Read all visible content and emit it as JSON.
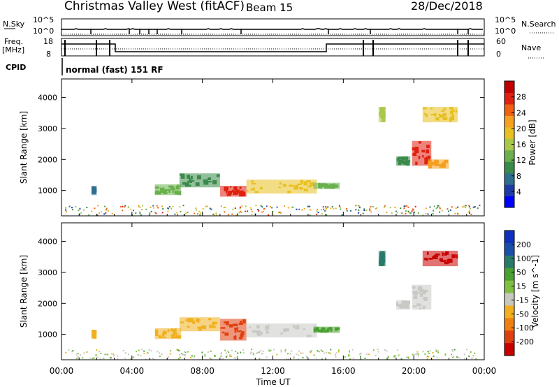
{
  "header": {
    "title": "Christmas Valley West (fitACF)",
    "beam": "Beam 15",
    "date": "28/Dec/2018"
  },
  "strip_labels": {
    "nsky": "N.Sky",
    "nsky_tick_top": "10^5",
    "nsky_tick_bottom": "10^0",
    "nsearch": "N.Search",
    "nsearch_tick_top": "10^5",
    "nsearch_tick_bottom": "10^0",
    "freq": "Freq.",
    "freq_unit": "[MHz]",
    "freq_tick_top": "18",
    "freq_tick_bottom": "8",
    "nave": "Nave",
    "nave_tick_top": "60",
    "nave_tick_bottom": "0",
    "cpid": "CPID",
    "cpid_value": "normal (fast) 151 RF"
  },
  "colors": {
    "power": [
      "#0000ff",
      "#1e3ca8",
      "#2e6f8e",
      "#3a8a4a",
      "#6ab04c",
      "#a9c84a",
      "#e8c020",
      "#f5a020",
      "#f06010",
      "#e02010",
      "#c00000"
    ],
    "velocity": [
      "#1030c0",
      "#1a4ea8",
      "#2a7a6a",
      "#4aa030",
      "#80c040",
      "#c8c8c0",
      "#f0b020",
      "#f08010",
      "#e04010",
      "#c80000"
    ],
    "velocity_gs": "#c8c8c4"
  },
  "chart_data": [
    {
      "type": "heatmap",
      "name": "Power",
      "xlabel": "",
      "ylabel": "Slant Range [km]",
      "xlim": [
        0,
        24
      ],
      "ylim": [
        180,
        4600
      ],
      "yticks": [
        1000,
        2000,
        3000,
        4000
      ],
      "colorbar": {
        "label": "Power [dB]",
        "range": [
          0,
          32
        ],
        "ticks": [
          "4",
          "8",
          "12",
          "16",
          "20",
          "24",
          "28"
        ]
      },
      "regions": [
        {
          "t": [
            1.7,
            2.0
          ],
          "r": [
            850,
            1150
          ],
          "v": 6
        },
        {
          "t": [
            5.3,
            6.8
          ],
          "r": [
            850,
            1200
          ],
          "v": 12
        },
        {
          "t": [
            6.7,
            9.0
          ],
          "r": [
            1100,
            1550
          ],
          "v": 11
        },
        {
          "t": [
            9.0,
            10.5
          ],
          "r": [
            800,
            1150
          ],
          "v": 28
        },
        {
          "t": [
            10.5,
            14.5
          ],
          "r": [
            900,
            1350
          ],
          "v": 20
        },
        {
          "t": [
            14.3,
            15.8
          ],
          "r": [
            1050,
            1250
          ],
          "v": 14
        },
        {
          "t": [
            18.0,
            18.4
          ],
          "r": [
            3200,
            3700
          ],
          "v": 17
        },
        {
          "t": [
            19.0,
            19.8
          ],
          "r": [
            1800,
            2100
          ],
          "v": 10
        },
        {
          "t": [
            19.9,
            21.0
          ],
          "r": [
            1800,
            2600
          ],
          "v": 29
        },
        {
          "t": [
            20.8,
            22.0
          ],
          "r": [
            1700,
            2000
          ],
          "v": 22
        },
        {
          "t": [
            20.5,
            22.5
          ],
          "r": [
            3200,
            3700
          ],
          "v": 18
        }
      ]
    },
    {
      "type": "heatmap",
      "name": "Velocity",
      "xlabel": "Time UT",
      "ylabel": "Slant Range [km]",
      "xlim": [
        0,
        24
      ],
      "ylim": [
        180,
        4600
      ],
      "xticks": [
        "00:00",
        "04:00",
        "08:00",
        "12:00",
        "16:00",
        "20:00",
        "00:00"
      ],
      "yticks": [
        1000,
        2000,
        3000,
        4000
      ],
      "colorbar": {
        "label": "Velocity [m s^-1]",
        "range": [
          -250,
          250
        ],
        "ticks": [
          "200",
          "100",
          "50",
          "15",
          "-15",
          "-50",
          "-100",
          "-200"
        ]
      },
      "regions": [
        {
          "t": [
            1.7,
            2.0
          ],
          "r": [
            850,
            1150
          ],
          "v": -60
        },
        {
          "t": [
            5.3,
            6.8
          ],
          "r": [
            850,
            1200
          ],
          "v": -80
        },
        {
          "t": [
            6.7,
            9.0
          ],
          "r": [
            1100,
            1550
          ],
          "v": -90
        },
        {
          "t": [
            9.0,
            10.5
          ],
          "r": [
            800,
            1500
          ],
          "v": -180
        },
        {
          "t": [
            10.5,
            14.5
          ],
          "r": [
            900,
            1350
          ],
          "v": 10
        },
        {
          "t": [
            14.3,
            15.8
          ],
          "r": [
            1050,
            1250
          ],
          "v": 60
        },
        {
          "t": [
            18.0,
            18.4
          ],
          "r": [
            3200,
            3700
          ],
          "v": 150
        },
        {
          "t": [
            19.0,
            19.8
          ],
          "r": [
            1800,
            2100
          ],
          "v": 0
        },
        {
          "t": [
            19.9,
            21.0
          ],
          "r": [
            1800,
            2600
          ],
          "v": 0
        },
        {
          "t": [
            20.5,
            22.5
          ],
          "r": [
            3200,
            3700
          ],
          "v": -220
        }
      ]
    }
  ]
}
